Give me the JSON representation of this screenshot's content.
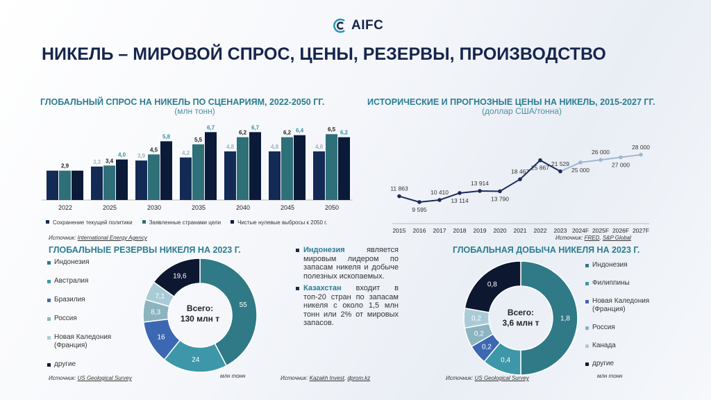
{
  "header": {
    "logo_text": "AIFC",
    "title": "НИКЕЛЬ – МИРОВОЙ СПРОС, ЦЕНЫ, РЕЗЕРВЫ, ПРОИЗВОДСТВО"
  },
  "demand": {
    "title": "ГЛОБАЛЬНЫЙ СПРОС НА НИКЕЛЬ ПО СЦЕНАРИЯМ, 2022-2050 ГГ.",
    "subtitle": "(млн тонн)",
    "source_prefix": "Источник: ",
    "source_link": "International Energy Agency"
  },
  "prices": {
    "title": "ИСТОРИЧЕСКИЕ И ПРОГНОЗНЫЕ ЦЕНЫ НА НИКЕЛЬ, 2015-2027 ГГ.",
    "subtitle": "(доллар США/тонна)",
    "source_prefix": "Источник: ",
    "source_link_1": "FRED",
    "source_sep": ", ",
    "source_link_2": "S&P Global"
  },
  "reserves": {
    "title": "ГЛОБАЛЬНЫЕ РЕЗЕРВЫ НИКЕЛЯ НА 2023 Г.",
    "center_line1": "Всего:",
    "center_line2": "130 млн т",
    "unit": "млн тонн",
    "source_prefix": "Источник: ",
    "source_link": "US Geological Survey"
  },
  "production": {
    "title": "ГЛОБАЛЬНАЯ ДОБЫЧА НИКЕЛЯ НА 2023 Г.",
    "center_line1": "Всего:",
    "center_line2": "3,6 млн т",
    "unit": "млн тонн",
    "source_prefix": "Источник: ",
    "source_link": "US Geological Survey"
  },
  "notes": {
    "item1_bold": "Индонезия",
    "item1_text": " является мировым лидером по запасам никеля и добыче полезных ископаемых.",
    "item2_bold": "Казахстан",
    "item2_text": " входит в топ-20 стран по запасам никеля с около 1,5 млн тонн или 2% от мировых запасов.",
    "source_prefix": "Источник: ",
    "source_link_1": "Kazakh Invest",
    "source_sep": ", ",
    "source_link_2": "dprom.kz"
  },
  "chart_data": [
    {
      "type": "bar",
      "categories": [
        "2022",
        "2025",
        "2030",
        "2035",
        "2040",
        "2045",
        "2050"
      ],
      "series": [
        {
          "name": "Сохранение текущей политики",
          "color": "#132a55",
          "values": [
            2.9,
            3.3,
            3.9,
            4.2,
            4.8,
            4.8,
            4.8
          ],
          "labels": [
            "",
            "3,3",
            "3,9",
            "4,2",
            "4,8",
            "4,8",
            "4,8"
          ]
        },
        {
          "name": "Заявленные странами цели",
          "color": "#2e6f78",
          "values": [
            2.9,
            3.4,
            4.5,
            5.5,
            6.2,
            6.2,
            6.5
          ],
          "labels": [
            "2,9",
            "3,4",
            "4,5",
            "5,5",
            "6,2",
            "6,2",
            "6,5"
          ]
        },
        {
          "name": "Чистые нулевые выбросы к 2050 г.",
          "color": "#0a1a38",
          "values": [
            2.9,
            4.0,
            5.8,
            6.7,
            6.7,
            6.4,
            6.2
          ],
          "labels": [
            "",
            "4,0",
            "5,8",
            "6,7",
            "6,7",
            "6,4",
            "6,2"
          ]
        }
      ],
      "label_colors": [
        "#9db4c4",
        "#222222",
        "#3a8fa8"
      ],
      "ylim": [
        0,
        7.2
      ]
    },
    {
      "type": "line",
      "x": [
        "2015",
        "2016",
        "2017",
        "2018",
        "2019",
        "2020",
        "2021",
        "2022",
        "2023",
        "2024F",
        "2025F",
        "2026F",
        "2027F"
      ],
      "values": [
        11863,
        9595,
        10410,
        13114,
        13914,
        13790,
        18467,
        25867,
        21529,
        25000,
        26000,
        27000,
        28000
      ],
      "labels": [
        "11 863",
        "9 595",
        "10 410",
        "13 114",
        "13 914",
        "13 790",
        "18 467",
        "25 867",
        "21 529",
        "25 000",
        "26 000",
        "27 000",
        "28 000"
      ],
      "historical_color": "#1b2a5a",
      "forecast_color": "#9fb6d0",
      "ylim": [
        5000,
        32000
      ]
    },
    {
      "type": "pie",
      "style": "donut",
      "categories": [
        "Индонезия",
        "Австралия",
        "Бразилия",
        "Россия",
        "Новая Каледония (Франция)",
        "другие"
      ],
      "values": [
        55,
        24,
        16,
        8.3,
        7.1,
        19.6
      ],
      "labels": [
        "55",
        "24",
        "16",
        "8,3",
        "7,1",
        "19,6"
      ],
      "colors": [
        "#2f7a86",
        "#3d97a8",
        "#3c68b3",
        "#8cb3c0",
        "#a9cbd6",
        "#0d1730"
      ],
      "label_colors": [
        "#ffffff",
        "#ffffff",
        "#ffffff",
        "#ffffff",
        "#ffffff",
        "#ffffff"
      ]
    },
    {
      "type": "pie",
      "style": "donut",
      "categories": [
        "Индонезия",
        "Филиппины",
        "Новая Каледония (Франция)",
        "Россия",
        "Канада",
        "другие"
      ],
      "values": [
        1.8,
        0.4,
        0.2,
        0.2,
        0.2,
        0.8
      ],
      "labels": [
        "1,8",
        "0,4",
        "0,2",
        "0,2",
        "0,2",
        "0,8"
      ],
      "colors": [
        "#2f7a86",
        "#3d97a8",
        "#3c68b3",
        "#8cb3c0",
        "#a9cbd6",
        "#0d1730"
      ],
      "label_colors": [
        "#ffffff",
        "#ffffff",
        "#ffffff",
        "#ffffff",
        "#ffffff",
        "#ffffff"
      ]
    }
  ]
}
